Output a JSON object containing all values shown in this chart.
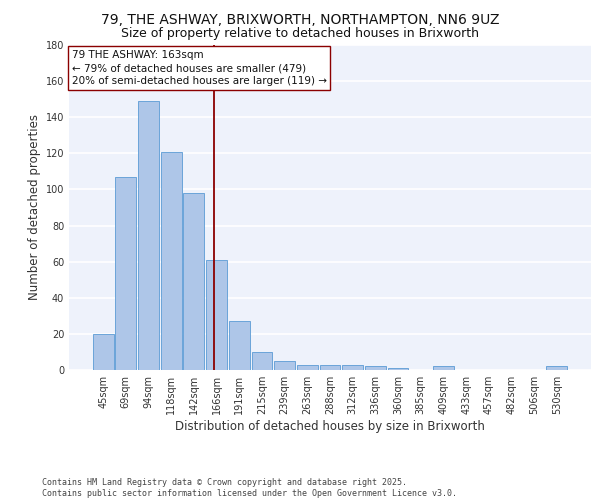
{
  "title_line1": "79, THE ASHWAY, BRIXWORTH, NORTHAMPTON, NN6 9UZ",
  "title_line2": "Size of property relative to detached houses in Brixworth",
  "xlabel": "Distribution of detached houses by size in Brixworth",
  "ylabel": "Number of detached properties",
  "categories": [
    "45sqm",
    "69sqm",
    "94sqm",
    "118sqm",
    "142sqm",
    "166sqm",
    "191sqm",
    "215sqm",
    "239sqm",
    "263sqm",
    "288sqm",
    "312sqm",
    "336sqm",
    "360sqm",
    "385sqm",
    "409sqm",
    "433sqm",
    "457sqm",
    "482sqm",
    "506sqm",
    "530sqm"
  ],
  "values": [
    20,
    107,
    149,
    121,
    98,
    61,
    27,
    10,
    5,
    3,
    3,
    3,
    2,
    1,
    0,
    2,
    0,
    0,
    0,
    0,
    2
  ],
  "bar_color": "#aec6e8",
  "bar_edge_color": "#5b9bd5",
  "vline_color": "#8b0000",
  "annotation_text": "79 THE ASHWAY: 163sqm\n← 79% of detached houses are smaller (479)\n20% of semi-detached houses are larger (119) →",
  "annotation_box_color": "#ffffff",
  "annotation_box_edge": "#8b0000",
  "ylim": [
    0,
    180
  ],
  "yticks": [
    0,
    20,
    40,
    60,
    80,
    100,
    120,
    140,
    160,
    180
  ],
  "background_color": "#eef2fb",
  "grid_color": "#ffffff",
  "footer_line1": "Contains HM Land Registry data © Crown copyright and database right 2025.",
  "footer_line2": "Contains public sector information licensed under the Open Government Licence v3.0.",
  "title_fontsize": 10,
  "subtitle_fontsize": 9,
  "axis_label_fontsize": 8.5,
  "tick_fontsize": 7,
  "annotation_fontsize": 7.5,
  "footer_fontsize": 6,
  "fig_width": 6.0,
  "fig_height": 5.0,
  "fig_dpi": 100
}
